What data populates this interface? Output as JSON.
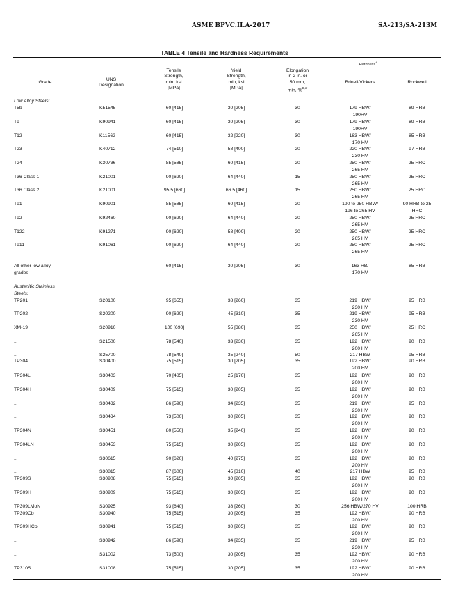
{
  "page_header": {
    "standard": "ASME BPVC.II.A-2017",
    "spec": "SA-213/SA-213M"
  },
  "table": {
    "title": "TABLE 4 Tensile and Hardness Requirements",
    "columns": {
      "grade": "Grade",
      "uns": "UNS\nDesignation",
      "tensile": "Tensile\nStrength,\nmin, ksi\n[MPa]",
      "yield": "Yield\nStrength,\nmin, ksi\n[MPa]",
      "elongation": "Elongation\nin 2 in. or\n50 mm,\nmin, %",
      "elongation_note": "B,C",
      "hardness": "Hardness",
      "hardness_note": "A",
      "brinell": "Brinell/Vickers",
      "rockwell": "Rockwell"
    },
    "sections": [
      {
        "label": "Low Alloy Steels:"
      },
      {
        "label": "Austenitic Stainless\nSteels:"
      }
    ],
    "rows": [
      {
        "grade": "T5b",
        "uns": "K51545",
        "tensile": "60 [415]",
        "yield": "30 [205]",
        "elong": "30",
        "brinell": "179 HBW/\n190HV",
        "rockwell": "89 HRB"
      },
      {
        "grade": "T9",
        "uns": "K90941",
        "tensile": "60 [415]",
        "yield": "30 [205]",
        "elong": "30",
        "brinell": "179 HBW/\n190HV",
        "rockwell": "89 HRB"
      },
      {
        "grade": "T12",
        "uns": "K11562",
        "tensile": "60 [415]",
        "yield": "32 [220]",
        "elong": "30",
        "brinell": "163 HBW/\n170 HV",
        "rockwell": "85 HRB"
      },
      {
        "grade": "T23",
        "uns": "K40712",
        "tensile": "74 [510]",
        "yield": "58 [400]",
        "elong": "20",
        "brinell": "220 HBW/\n230 HV",
        "rockwell": "97 HRB"
      },
      {
        "grade": "T24",
        "uns": "K30736",
        "tensile": "85 [585]",
        "yield": "60 [415]",
        "elong": "20",
        "brinell": "250 HBW/\n265 HV",
        "rockwell": "25 HRC"
      },
      {
        "grade": "T36 Class 1",
        "uns": "K21001",
        "tensile": "90 [620]",
        "yield": "64 [440]",
        "elong": "15",
        "brinell": "250 HBW/\n265 HV",
        "rockwell": "25 HRC"
      },
      {
        "grade": "T36 Class 2",
        "uns": "K21001",
        "tensile": "95.5 [660]",
        "yield": "66.5 [460]",
        "elong": "15",
        "brinell": "250 HBW/\n265 HV",
        "rockwell": "25 HRC"
      },
      {
        "grade": "T91",
        "uns": "K90901",
        "tensile": "85 [585]",
        "yield": "60 [415]",
        "elong": "20",
        "brinell": "190 to 250 HBW/\n196 to 265 HV",
        "rockwell": "90 HRB to 25\nHRC"
      },
      {
        "grade": "T92",
        "uns": "K92460",
        "tensile": "90 [620]",
        "yield": "64 [440]",
        "elong": "20",
        "brinell": "250 HBW/\n265 HV",
        "rockwell": "25 HRC"
      },
      {
        "grade": "T122",
        "uns": "K91271",
        "tensile": "90 [620]",
        "yield": "58 [400]",
        "elong": "20",
        "brinell": "250 HBW/\n265 HV",
        "rockwell": "25 HRC"
      },
      {
        "grade": "T911",
        "uns": "K91061",
        "tensile": "90 [620]",
        "yield": "64 [440]",
        "elong": "20",
        "brinell": "250 HBW/\n265 HV",
        "rockwell": "25 HRC"
      },
      {
        "grade": "All other low alloy\ngrades",
        "uns": "",
        "tensile": "60 [415]",
        "yield": "30 [205]",
        "elong": "30",
        "brinell": "163 HB/\n170 HV",
        "rockwell": "85 HRB"
      },
      {
        "grade": "TP201",
        "uns": "S20100",
        "tensile": "95 [655]",
        "yield": "38 [260]",
        "elong": "35",
        "brinell": "219 HBW/\n230 HV",
        "rockwell": "95 HRB"
      },
      {
        "grade": "TP202",
        "uns": "S20200",
        "tensile": "90 [620]",
        "yield": "45 [310]",
        "elong": "35",
        "brinell": "219 HBW/\n230 HV",
        "rockwell": "95 HRB"
      },
      {
        "grade": "XM-19",
        "uns": "S20910",
        "tensile": "100 [690]",
        "yield": "55 [380]",
        "elong": "35",
        "brinell": "250 HBW/\n265 HV",
        "rockwell": "25 HRC"
      },
      {
        "grade": "...",
        "uns": "S21500",
        "tensile": "78 [540]",
        "yield": "33 [230]",
        "elong": "35",
        "brinell": "192 HBW/\n200 HV",
        "rockwell": "90 HRB"
      },
      {
        "grade": "...",
        "uns": "S25700",
        "tensile": "78 [540]",
        "yield": "35 [240]",
        "elong": "50",
        "brinell": "217 HBW",
        "rockwell": "95 HRB"
      },
      {
        "grade": "TP304",
        "uns": "S30400",
        "tensile": "75 [515]",
        "yield": "30 [205]",
        "elong": "35",
        "brinell": "192 HBW/\n200 HV",
        "rockwell": "90 HRB"
      },
      {
        "grade": "TP304L",
        "uns": "S30403",
        "tensile": "70 [485]",
        "yield": "25 [170]",
        "elong": "35",
        "brinell": "192 HBW/\n200 HV",
        "rockwell": "90 HRB"
      },
      {
        "grade": "TP304H",
        "uns": "S30409",
        "tensile": "75 [515]",
        "yield": "30 [205]",
        "elong": "35",
        "brinell": "192 HBW/\n200 HV",
        "rockwell": "90 HRB"
      },
      {
        "grade": "...",
        "uns": "S30432",
        "tensile": "86 [590]",
        "yield": "34 [235]",
        "elong": "35",
        "brinell": "219 HBW/\n230 HV",
        "rockwell": "95 HRB"
      },
      {
        "grade": "...",
        "uns": "S30434",
        "tensile": "73 [500]",
        "yield": "30 [205]",
        "elong": "35",
        "brinell": "192 HBW/\n200 HV",
        "rockwell": "90 HRB"
      },
      {
        "grade": "TP304N",
        "uns": "S30451",
        "tensile": "80 [550]",
        "yield": "35 [240]",
        "elong": "35",
        "brinell": "192 HBW/\n200 HV",
        "rockwell": "90 HRB"
      },
      {
        "grade": "TP304LN",
        "uns": "S30453",
        "tensile": "75 [515]",
        "yield": "30 [205]",
        "elong": "35",
        "brinell": "192 HBW/\n200 HV",
        "rockwell": "90 HRB"
      },
      {
        "grade": "...",
        "uns": "S30615",
        "tensile": "90 [620]",
        "yield": "40 [275]",
        "elong": "35",
        "brinell": "192 HBW/\n200 HV",
        "rockwell": "90 HRB"
      },
      {
        "grade": "...",
        "uns": "S30815",
        "tensile": "87 [600]",
        "yield": "45 [310]",
        "elong": "40",
        "brinell": "217 HBW",
        "rockwell": "95 HRB"
      },
      {
        "grade": "TP309S",
        "uns": "S30908",
        "tensile": "75 [515]",
        "yield": "30 [205]",
        "elong": "35",
        "brinell": "192 HBW/\n200 HV",
        "rockwell": "90 HRB"
      },
      {
        "grade": "TP309H",
        "uns": "S30909",
        "tensile": "75 [515]",
        "yield": "30 [205]",
        "elong": "35",
        "brinell": "192 HBW/\n200 HV",
        "rockwell": "90 HRB"
      },
      {
        "grade": "TP309LMoN",
        "uns": "S30925",
        "tensile": "93 [640]",
        "yield": "38 [260]",
        "elong": "30",
        "brinell": "256 HBW/270 HV",
        "rockwell": "100 HRB"
      },
      {
        "grade": "TP309Cb",
        "uns": "S30940",
        "tensile": "75 [515]",
        "yield": "30 [205]",
        "elong": "35",
        "brinell": "192 HBW/\n200 HV",
        "rockwell": "90 HRB"
      },
      {
        "grade": "TP309HCb",
        "uns": "S30941",
        "tensile": "75 [515]",
        "yield": "30 [205]",
        "elong": "35",
        "brinell": "192 HBW/\n200 HV",
        "rockwell": "90 HRB"
      },
      {
        "grade": "...",
        "uns": "S30942",
        "tensile": "86 [590]",
        "yield": "34 [235]",
        "elong": "35",
        "brinell": "219 HBW/\n230 HV",
        "rockwell": "95 HRB"
      },
      {
        "grade": "...",
        "uns": "S31002",
        "tensile": "73 [500]",
        "yield": "30 [205]",
        "elong": "35",
        "brinell": "192 HBW/\n200 HV",
        "rockwell": "90 HRB"
      },
      {
        "grade": "TP310S",
        "uns": "S31008",
        "tensile": "75 [515]",
        "yield": "30 [205]",
        "elong": "35",
        "brinell": "192 HBW/\n200 HV",
        "rockwell": "90 HRB"
      }
    ]
  }
}
